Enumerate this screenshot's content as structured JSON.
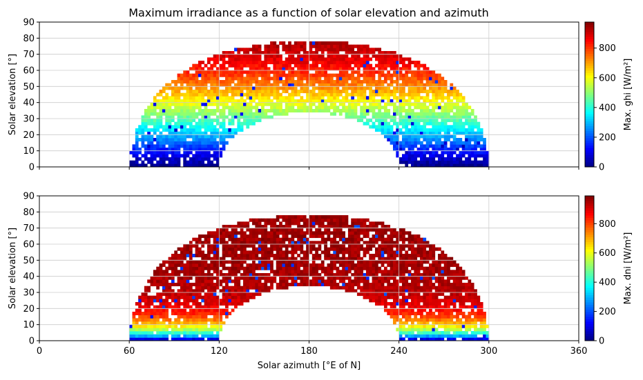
{
  "figure": {
    "title": "Maximum irradiance as a function of solar elevation and azimuth"
  },
  "chart_data": [
    {
      "type": "heatmap",
      "name": "ghi",
      "title": "Maximum irradiance as a function of solar elevation and azimuth",
      "xlabel": "",
      "ylabel": "Solar elevation [°]",
      "colorbar_label": "Max. ghi [W/m²]",
      "xlim": [
        0,
        360
      ],
      "ylim": [
        0,
        90
      ],
      "y_ticks": [
        "0",
        "10",
        "20",
        "30",
        "40",
        "50",
        "60",
        "70",
        "80",
        "90"
      ],
      "x_ticks_labelled": false,
      "colorbar_range": [
        0,
        975
      ],
      "colorbar_ticks": [
        "0",
        "200",
        "400",
        "600",
        "800"
      ],
      "colormap": "jet",
      "grid": true,
      "cell_size": {
        "azimuth_deg": 2,
        "elevation_deg": 2
      },
      "data_extent": {
        "azimuth": [
          60,
          300
        ],
        "elevation_max": 78
      },
      "value_model": "value increases with solar elevation; near 0 at horizon, about 950 at top"
    },
    {
      "type": "heatmap",
      "name": "dni",
      "xlabel": "Solar azimuth [°E of N]",
      "ylabel": "Solar elevation [°]",
      "colorbar_label": "Max. dni [W/m²]",
      "xlim": [
        0,
        360
      ],
      "ylim": [
        0,
        90
      ],
      "x_ticks": [
        "0",
        "60",
        "120",
        "180",
        "240",
        "300",
        "360"
      ],
      "y_ticks": [
        "0",
        "10",
        "20",
        "30",
        "40",
        "50",
        "60",
        "70",
        "80",
        "90"
      ],
      "colorbar_range": [
        0,
        990
      ],
      "colorbar_ticks": [
        "0",
        "200",
        "400",
        "600",
        "800"
      ],
      "colormap": "jet",
      "grid": true,
      "cell_size": {
        "azimuth_deg": 2,
        "elevation_deg": 2
      },
      "data_extent": {
        "azimuth": [
          60,
          300
        ],
        "elevation_max": 78
      },
      "value_model": "value rises quickly with solar elevation; near 0 at horizon, saturating near 950 above about 25°"
    }
  ]
}
